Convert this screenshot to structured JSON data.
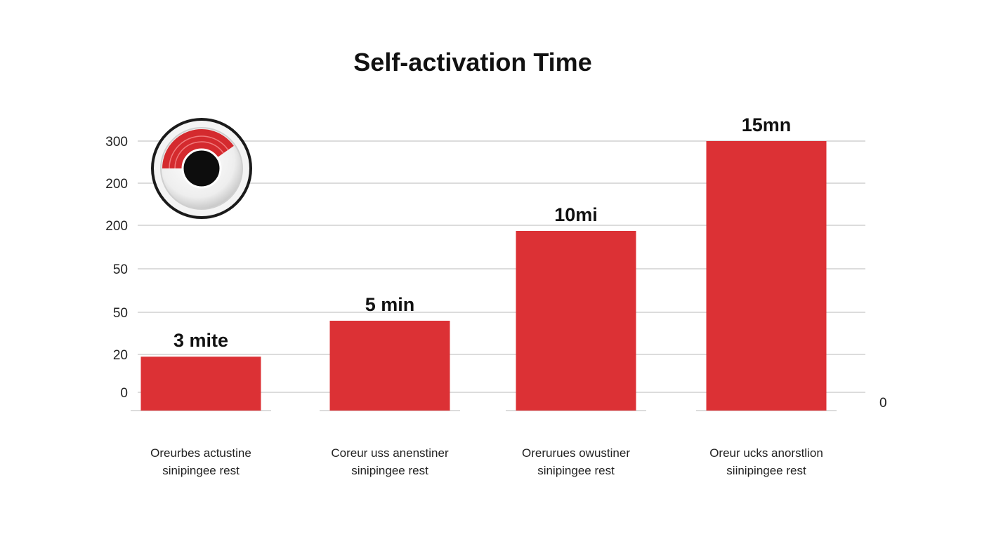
{
  "chart_data": {
    "type": "bar",
    "title": "Self-activation Time",
    "categories": [
      [
        "Oreurbes actustine",
        "sinipingee rest"
      ],
      [
        "Coreur uss anenstiner",
        "sinipingee rest"
      ],
      [
        "Orerurues owustiner",
        "sinipingee rest"
      ],
      [
        "Oreur ucks anorstlion",
        "siinipingee rest"
      ]
    ],
    "values": [
      3,
      5,
      10,
      15
    ],
    "data_labels": [
      "3 mite",
      "5 min",
      "10mi",
      "15mn"
    ],
    "y_tick_labels": [
      "300",
      "200",
      "200",
      "50",
      "50",
      "20",
      "0"
    ],
    "right_axis_label": "0",
    "ylim": [
      0,
      15
    ],
    "grid": true,
    "legend": "none"
  },
  "colors": {
    "bar": "#dc3135",
    "gridline": "#d0d0d0",
    "axis_text": "#222222",
    "title": "#111111",
    "dial_ring": "#1a1a1a",
    "dial_accent": "#d42a2e"
  },
  "icons": {
    "badge": "timer-dial-icon"
  }
}
